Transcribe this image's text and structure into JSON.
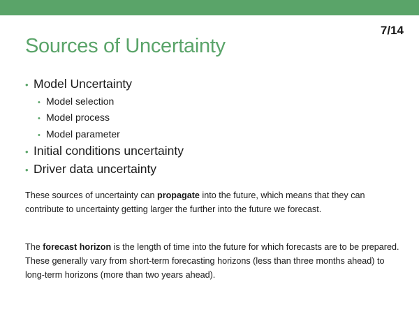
{
  "slide": {
    "page_number": "7/14",
    "title": "Sources of Uncertainty"
  },
  "bullets": {
    "model_uncertainty": "Model Uncertainty",
    "model_selection": "Model selection",
    "model_process": "Model process",
    "model_parameter": "Model parameter",
    "initial_conditions": "Initial conditions uncertainty",
    "driver_data": "Driver data uncertainty"
  },
  "paragraph1": {
    "before": "These sources of uncertainty can ",
    "bold": "propagate",
    "after": " into the future, which means that they can contribute to uncertainty getting larger the further into the future we forecast."
  },
  "paragraph2": {
    "before": "The ",
    "bold": "forecast horizon",
    "after": " is the length of time into the future for which forecasts are to be prepared. These generally vary from short-term forecasting horizons (less than three months ahead) to long-term horizons (more than two years ahead)."
  },
  "colors": {
    "accent": "#5aa469"
  },
  "icons": {
    "bullet": "bullet-dot-icon"
  }
}
